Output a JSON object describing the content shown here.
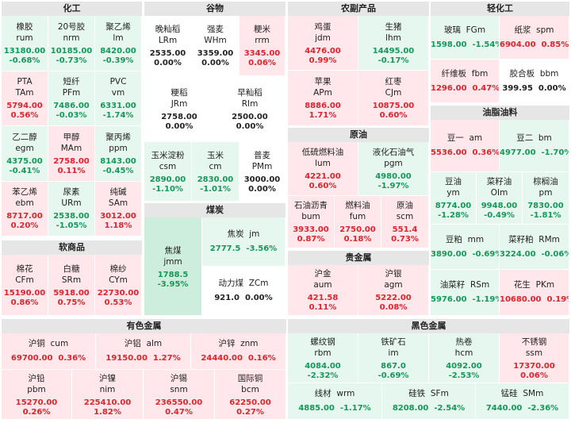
{
  "sections": [
    {
      "title": "化工",
      "items": [
        {
          "name": "橡胶",
          "code": "rum",
          "price": "13180.00",
          "change": "-0.68%",
          "trend": "neg"
        },
        {
          "name": "20号胶",
          "code": "nrm",
          "price": "10185.00",
          "change": "-0.73%",
          "trend": "neg"
        },
        {
          "name": "聚乙烯",
          "code": "lm",
          "price": "8420.00",
          "change": "-0.39%",
          "trend": "neg"
        },
        {
          "name": "PTA",
          "code": "TAm",
          "price": "5794.00",
          "change": "0.56%",
          "trend": "pos"
        },
        {
          "name": "短纤",
          "code": "PFm",
          "price": "7486.00",
          "change": "-0.03%",
          "trend": "neg"
        },
        {
          "name": "PVC",
          "code": "vm",
          "price": "6331.00",
          "change": "-1.74%",
          "trend": "neg"
        },
        {
          "name": "乙二醇",
          "code": "egm",
          "price": "4375.00",
          "change": "-0.41%",
          "trend": "neg"
        },
        {
          "name": "甲醇",
          "code": "MAm",
          "price": "2758.00",
          "change": "0.11%",
          "trend": "pos"
        },
        {
          "name": "聚丙烯",
          "code": "ppm",
          "price": "8143.00",
          "change": "-0.45%",
          "trend": "neg"
        },
        {
          "name": "苯乙烯",
          "code": "ebm",
          "price": "8717.00",
          "change": "0.20%",
          "trend": "pos"
        },
        {
          "name": "尿素",
          "code": "URm",
          "price": "2538.00",
          "change": "-1.05%",
          "trend": "neg"
        },
        {
          "name": "纯碱",
          "code": "SAm",
          "price": "3012.00",
          "change": "1.18%",
          "trend": "pos"
        }
      ]
    },
    {
      "title": "软商品",
      "items": [
        {
          "name": "棉花",
          "code": "CFm",
          "price": "15190.00",
          "change": "0.86%",
          "trend": "pos"
        },
        {
          "name": "白糖",
          "code": "SRm",
          "price": "5918.00",
          "change": "0.75%",
          "trend": "pos"
        },
        {
          "name": "棉纱",
          "code": "CYm",
          "price": "22730.00",
          "change": "0.53%",
          "trend": "pos"
        }
      ]
    },
    {
      "title": "谷物",
      "items": [
        {
          "name": "晚籼稻",
          "code": "LRm",
          "price": "2535.00",
          "change": "0.00%",
          "trend": "neu"
        },
        {
          "name": "强麦",
          "code": "WHm",
          "price": "3359.00",
          "change": "0.00%",
          "trend": "neu"
        },
        {
          "name": "粳米",
          "code": "rrm",
          "price": "3345.00",
          "change": "0.06%",
          "trend": "pos"
        },
        {
          "name": "粳稻",
          "code": "JRm",
          "price": "2758.00",
          "change": "0.00%",
          "trend": "neu"
        },
        {
          "name": "早籼稻",
          "code": "RIm",
          "price": "2500.00",
          "change": "0.00%",
          "trend": "neu"
        },
        {
          "name": "玉米淀粉",
          "code": "csm",
          "price": "2890.00",
          "change": "-1.10%",
          "trend": "neg"
        },
        {
          "name": "玉米",
          "code": "cm",
          "price": "2830.00",
          "change": "-1.01%",
          "trend": "neg"
        },
        {
          "name": "普麦",
          "code": "PMm",
          "price": "3000.00",
          "change": "0.00%",
          "trend": "neu"
        }
      ]
    },
    {
      "title": "煤炭",
      "items": [
        {
          "name": "焦煤",
          "code": "jmm",
          "price": "1788.5",
          "change": "-3.95%",
          "trend": "neg"
        },
        {
          "name": "焦炭",
          "code": "jm",
          "price": "2777.5",
          "change": "-3.56%",
          "trend": "neg"
        },
        {
          "name": "动力煤",
          "code": "ZCm",
          "price": "921.0",
          "change": "0.00%",
          "trend": "neu"
        }
      ]
    },
    {
      "title": "农副产品",
      "items": [
        {
          "name": "鸡蛋",
          "code": "jdm",
          "price": "4476.00",
          "change": "0.99%",
          "trend": "pos"
        },
        {
          "name": "生猪",
          "code": "lhm",
          "price": "14495.00",
          "change": "-0.17%",
          "trend": "neg"
        },
        {
          "name": "苹果",
          "code": "APm",
          "price": "8886.00",
          "change": "1.71%",
          "trend": "pos"
        },
        {
          "name": "红枣",
          "code": "CJm",
          "price": "10875.00",
          "change": "0.60%",
          "trend": "pos"
        }
      ]
    },
    {
      "title": "原油",
      "items": [
        {
          "name": "低硫燃料油",
          "code": "lum",
          "price": "4221.00",
          "change": "0.60%",
          "trend": "pos"
        },
        {
          "name": "液化石油气",
          "code": "pgm",
          "price": "4980.00",
          "change": "-1.97%",
          "trend": "neg"
        },
        {
          "name": "石油沥青",
          "code": "bum",
          "price": "3933.00",
          "change": "0.87%",
          "trend": "pos"
        },
        {
          "name": "燃料油",
          "code": "fum",
          "price": "2750.00",
          "change": "0.18%",
          "trend": "pos"
        },
        {
          "name": "原油",
          "code": "scm",
          "price": "551.4",
          "change": "0.73%",
          "trend": "pos"
        }
      ]
    },
    {
      "title": "贵金属",
      "items": [
        {
          "name": "沪金",
          "code": "aum",
          "price": "421.58",
          "change": "0.11%",
          "trend": "pos"
        },
        {
          "name": "沪银",
          "code": "agm",
          "price": "5222.00",
          "change": "0.08%",
          "trend": "pos"
        }
      ]
    },
    {
      "title": "轻化工",
      "items": [
        {
          "name": "玻璃",
          "code": "FGm",
          "price": "1598.00",
          "change": "-1.54%",
          "trend": "neg"
        },
        {
          "name": "纸浆",
          "code": "spm",
          "price": "6904.00",
          "change": "0.85%",
          "trend": "pos"
        },
        {
          "name": "纤维板",
          "code": "fbm",
          "price": "1296.00",
          "change": "0.47%",
          "trend": "pos"
        },
        {
          "name": "胶合板",
          "code": "bbm",
          "price": "399.95",
          "change": "0.00%",
          "trend": "neu"
        }
      ]
    },
    {
      "title": "油脂油料",
      "items": [
        {
          "name": "豆一",
          "code": "am",
          "price": "5536.00",
          "change": "0.36%",
          "trend": "pos"
        },
        {
          "name": "豆二",
          "code": "bm",
          "price": "4977.00",
          "change": "-1.70%",
          "trend": "neg"
        },
        {
          "name": "豆油",
          "code": "ym",
          "price": "8774.00",
          "change": "-1.28%",
          "trend": "neg"
        },
        {
          "name": "菜籽油",
          "code": "OIm",
          "price": "9948.00",
          "change": "-0.49%",
          "trend": "neg"
        },
        {
          "name": "棕榈油",
          "code": "pm",
          "price": "7830.00",
          "change": "-1.81%",
          "trend": "neg"
        },
        {
          "name": "豆粕",
          "code": "mm",
          "price": "3890.00",
          "change": "-0.69%",
          "trend": "neg"
        },
        {
          "name": "菜籽粕",
          "code": "RMm",
          "price": "3224.00",
          "change": "-0.06%",
          "trend": "neg"
        },
        {
          "name": "油菜籽",
          "code": "RSm",
          "price": "5976.00",
          "change": "-1.19%",
          "trend": "neg"
        },
        {
          "name": "花生",
          "code": "PKm",
          "price": "10680.00",
          "change": "0.19%",
          "trend": "pos"
        }
      ]
    },
    {
      "title": "有色金属",
      "items": [
        {
          "name": "沪铜",
          "code": "cum",
          "price": "69700.00",
          "change": "0.36%",
          "trend": "pos"
        },
        {
          "name": "沪铝",
          "code": "alm",
          "price": "19150.00",
          "change": "1.27%",
          "trend": "pos"
        },
        {
          "name": "沪锌",
          "code": "znm",
          "price": "24440.00",
          "change": "0.16%",
          "trend": "pos"
        },
        {
          "name": "沪铅",
          "code": "pbm",
          "price": "15270.00",
          "change": "0.26%",
          "trend": "pos"
        },
        {
          "name": "沪镍",
          "code": "nim",
          "price": "225410.00",
          "change": "1.82%",
          "trend": "pos"
        },
        {
          "name": "沪锡",
          "code": "snm",
          "price": "236550.00",
          "change": "0.47%",
          "trend": "pos"
        },
        {
          "name": "国际铜",
          "code": "bcm",
          "price": "62250.00",
          "change": "0.27%",
          "trend": "pos"
        }
      ]
    },
    {
      "title": "黑色金属",
      "items": [
        {
          "name": "螺纹钢",
          "code": "rbm",
          "price": "4084.00",
          "change": "-2.32%",
          "trend": "neg"
        },
        {
          "name": "铁矿石",
          "code": "im",
          "price": "867.0",
          "change": "-0.69%",
          "trend": "neg"
        },
        {
          "name": "热卷",
          "code": "hcm",
          "price": "4092.00",
          "change": "-2.53%",
          "trend": "neg"
        },
        {
          "name": "不锈钢",
          "code": "ssm",
          "price": "17370.00",
          "change": "0.06%",
          "trend": "pos"
        },
        {
          "name": "线材",
          "code": "wrm",
          "price": "4885.00",
          "change": "-1.17%",
          "trend": "neg"
        },
        {
          "name": "硅铁",
          "code": "SFm",
          "price": "8208.00",
          "change": "-2.54%",
          "trend": "neg"
        },
        {
          "name": "锰硅",
          "code": "SMm",
          "price": "7440.00",
          "change": "-2.36%",
          "trend": "neg"
        }
      ]
    }
  ]
}
